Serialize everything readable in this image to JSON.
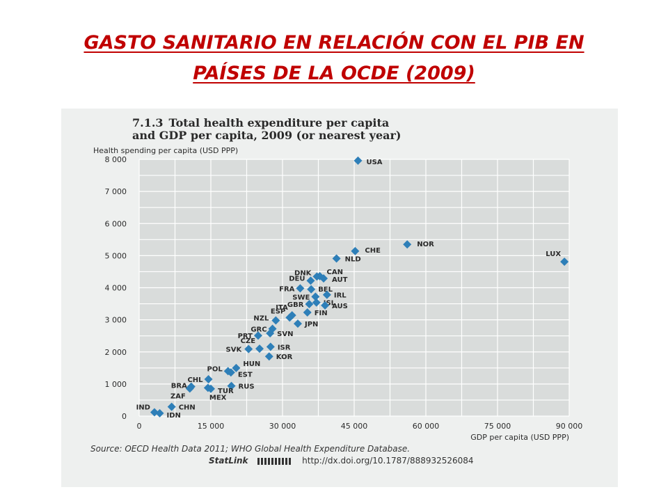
{
  "slide": {
    "title_line1": "GASTO SANITARIO EN RELACIÓN CON EL PIB EN",
    "title_line2": "PAÍSES DE LA OCDE (2009)",
    "title_color": "#c00000"
  },
  "figure": {
    "number": "7.1.3",
    "title_line1": "Total health expenditure per capita",
    "title_line2": "and GDP per capita, 2009 (or nearest year)",
    "source": "Source: OECD Health Data 2011; WHO Global Health Expenditure Database.",
    "statlink_label": "StatLink",
    "statlink_url": "http://dx.doi.org/10.1787/888932526084"
  },
  "chart_data": {
    "type": "scatter",
    "title": "Total health expenditure per capita and GDP per capita, 2009 (or nearest year)",
    "xlabel": "GDP per capita (USD PPP)",
    "ylabel": "Health spending per capita (USD PPP)",
    "xlim": [
      0,
      90000
    ],
    "ylim": [
      0,
      8000
    ],
    "x_ticks": [
      0,
      15000,
      30000,
      45000,
      60000,
      75000,
      90000
    ],
    "x_tick_labels": [
      "0",
      "15 000",
      "30 000",
      "45 000",
      "60 000",
      "75 000",
      "90 000"
    ],
    "y_ticks": [
      0,
      1000,
      2000,
      3000,
      4000,
      5000,
      6000,
      7000,
      8000
    ],
    "y_tick_labels": [
      "0",
      "1 000",
      "2 000",
      "3 000",
      "4 000",
      "5 000",
      "6 000",
      "7 000",
      "8 000"
    ],
    "grid": true,
    "marker_color": "#2e7fb8",
    "points": [
      {
        "label": "USA",
        "x": 45800,
        "y": 7960
      },
      {
        "label": "NOR",
        "x": 56100,
        "y": 5350
      },
      {
        "label": "LUX",
        "x": 89000,
        "y": 4810
      },
      {
        "label": "CHE",
        "x": 45200,
        "y": 5140
      },
      {
        "label": "NLD",
        "x": 41300,
        "y": 4910
      },
      {
        "label": "CAN",
        "x": 37800,
        "y": 4360
      },
      {
        "label": "DNK",
        "x": 37200,
        "y": 4350
      },
      {
        "label": "AUT",
        "x": 38600,
        "y": 4290
      },
      {
        "label": "DEU",
        "x": 35900,
        "y": 4220
      },
      {
        "label": "FRA",
        "x": 33700,
        "y": 3980
      },
      {
        "label": "BEL",
        "x": 36000,
        "y": 3950
      },
      {
        "label": "IRL",
        "x": 39300,
        "y": 3780
      },
      {
        "label": "SWE",
        "x": 36900,
        "y": 3720
      },
      {
        "label": "ISL",
        "x": 37100,
        "y": 3540
      },
      {
        "label": "GBR",
        "x": 35600,
        "y": 3490
      },
      {
        "label": "AUS",
        "x": 38900,
        "y": 3450
      },
      {
        "label": "ITA",
        "x": 32000,
        "y": 3140
      },
      {
        "label": "FIN",
        "x": 35200,
        "y": 3230
      },
      {
        "label": "ESP",
        "x": 31500,
        "y": 3070
      },
      {
        "label": "NZL",
        "x": 28600,
        "y": 2980
      },
      {
        "label": "JPN",
        "x": 33200,
        "y": 2880
      },
      {
        "label": "GRC",
        "x": 27900,
        "y": 2720
      },
      {
        "label": "SVN",
        "x": 27400,
        "y": 2580
      },
      {
        "label": "PRT",
        "x": 24900,
        "y": 2510
      },
      {
        "label": "CZE",
        "x": 25200,
        "y": 2100
      },
      {
        "label": "SVK",
        "x": 22900,
        "y": 2090
      },
      {
        "label": "ISR",
        "x": 27500,
        "y": 2160
      },
      {
        "label": "KOR",
        "x": 27200,
        "y": 1860
      },
      {
        "label": "HUN",
        "x": 20300,
        "y": 1500
      },
      {
        "label": "EST",
        "x": 19200,
        "y": 1360
      },
      {
        "label": "POL",
        "x": 18600,
        "y": 1400
      },
      {
        "label": "CHL",
        "x": 14500,
        "y": 1150
      },
      {
        "label": "RUS",
        "x": 19300,
        "y": 940
      },
      {
        "label": "BRA",
        "x": 10900,
        "y": 920
      },
      {
        "label": "ZAF",
        "x": 10600,
        "y": 860
      },
      {
        "label": "TUR",
        "x": 15000,
        "y": 850
      },
      {
        "label": "MEX",
        "x": 14400,
        "y": 880
      },
      {
        "label": "CHN",
        "x": 6800,
        "y": 290
      },
      {
        "label": "IND",
        "x": 3200,
        "y": 120
      },
      {
        "label": "IDN",
        "x": 4300,
        "y": 90
      }
    ]
  }
}
